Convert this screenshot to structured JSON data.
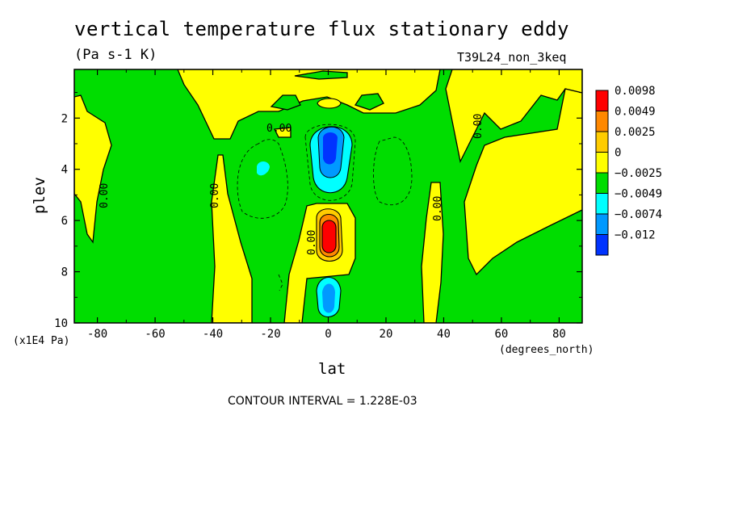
{
  "chart_data": {
    "type": "heatmap",
    "title": "vertical temperature flux stationary eddy",
    "units": "(Pa s-1 K)",
    "experiment": "T39L24_non_3keq",
    "xlabel": "lat",
    "x_units": "(degrees_north)",
    "ylabel": "plev",
    "y_units": "(x1E4 Pa)",
    "xlim": [
      -88,
      88
    ],
    "ylim": [
      10,
      0.1
    ],
    "x_ticks": [
      "-80",
      "-60",
      "-40",
      "-20",
      "0",
      "20",
      "40",
      "60",
      "80"
    ],
    "y_ticks": [
      "2",
      "4",
      "6",
      "8",
      "10"
    ],
    "contour_interval": "CONTOUR INTERVAL = 1.228E-03",
    "contour_labels": [
      "0.00",
      "0.00",
      "0.00",
      "0.00",
      "0.00",
      "0.00",
      "0.00"
    ],
    "legend": {
      "levels": [
        "0.0098",
        "0.0049",
        "0.0025",
        "0",
        "−0.0025",
        "−0.0049",
        "−0.0074",
        "−0.012"
      ],
      "colors": [
        "#ff0000",
        "#ff8800",
        "#ffcc00",
        "#ffff00",
        "#00dd00",
        "#00ffff",
        "#0099ff",
        "#0033ff"
      ]
    },
    "features": [
      {
        "name": "positive maximum",
        "lat": 0,
        "plev": 6.8,
        "value": "> 0.0098"
      },
      {
        "name": "negative minimum upper",
        "lat": 0,
        "plev": 3.2,
        "value": "< -0.0074"
      },
      {
        "name": "negative minimum lower",
        "lat": 0,
        "plev": 9.0,
        "value": "< -0.0049"
      },
      {
        "name": "negative small SH",
        "lat": -23,
        "plev": 4.0,
        "value": "< -0.0025"
      }
    ]
  },
  "labels": {
    "title": "vertical temperature flux stationary eddy",
    "units": "(Pa s-1 K)",
    "experiment": "T39L24_non_3keq",
    "xlabel": "lat",
    "ylabel": "plev",
    "yunit": "(x1E4 Pa)",
    "xunit": "(degrees_north)",
    "contour_interval": "CONTOUR INTERVAL = 1.228E-03"
  }
}
